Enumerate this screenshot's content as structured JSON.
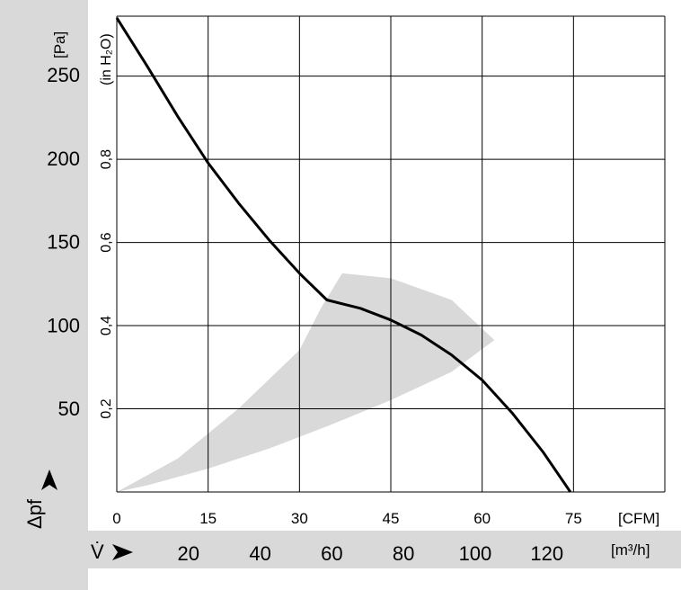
{
  "chart_data": {
    "type": "line",
    "title": "",
    "x_axis": {
      "unit_cfm": "[CFM]",
      "ticks_cfm": [
        "0",
        "15",
        "30",
        "45",
        "60",
        "75"
      ],
      "range_cfm": [
        0,
        90
      ],
      "symbol": "V̇",
      "unit_m3h": "[m³/h]",
      "ticks_m3h": [
        "20",
        "40",
        "60",
        "80",
        "100",
        "120"
      ]
    },
    "y_axis": {
      "unit_pa": "[Pa]",
      "ticks_pa": [
        "50",
        "100",
        "150",
        "200",
        "250"
      ],
      "range_pa": [
        0,
        285
      ],
      "symbol": "Δpf",
      "unit_inh2o": "(in H₂O)",
      "ticks_inh2o": [
        "0,2",
        "0,4",
        "0,6",
        "0,8"
      ]
    },
    "grid": true,
    "series": [
      {
        "x": [
          0,
          5,
          10,
          15,
          20,
          25,
          30,
          34.5,
          40,
          45,
          50,
          55,
          60,
          65,
          70,
          74.5
        ],
        "y": [
          284,
          255,
          225,
          197,
          173,
          151,
          131,
          115,
          110,
          103,
          94,
          82,
          67,
          47,
          24,
          0
        ]
      }
    ],
    "shaded_operating_range": {
      "x": [
        0,
        10,
        20,
        30,
        33.5,
        37,
        45,
        55,
        62,
        55,
        45,
        35,
        25,
        15,
        5,
        0
      ],
      "y": [
        0,
        20,
        50,
        85,
        110,
        131,
        128,
        115,
        91,
        72,
        55,
        40,
        26,
        14,
        4,
        0
      ]
    }
  }
}
